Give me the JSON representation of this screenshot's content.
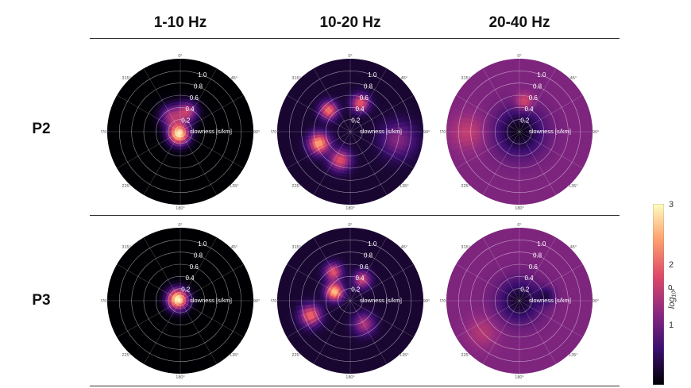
{
  "header": {
    "columns": [
      "1-10 Hz",
      "10-20 Hz",
      "20-40 Hz"
    ],
    "rows": [
      "P2",
      "P3"
    ]
  },
  "chart_data": {
    "type": "heatmap",
    "projection": "polar",
    "radial_label": "slowness [s/km]",
    "radial_ticks": [
      "0.2",
      "0.4",
      "0.6",
      "0.8",
      "1.0"
    ],
    "radial_range": [
      0,
      1.2
    ],
    "azimuth_ticks": [
      "0°",
      "45°",
      "90°",
      "135°",
      "180°",
      "225°",
      "270°",
      "315°"
    ],
    "colorbar": {
      "label": "log₁₀P",
      "range": [
        0,
        3
      ],
      "ticks": [
        "1",
        "2",
        "3"
      ],
      "colors": [
        "#000004",
        "#3b0f70",
        "#8c2981",
        "#de4968",
        "#fe9f6d",
        "#fcfdbf"
      ]
    },
    "panels": [
      {
        "row": "P2",
        "band": "1-10 Hz",
        "background": 0.0,
        "blobs": [
          {
            "az": 210,
            "s": 0.05,
            "sig": 0.12,
            "amp": 2.9
          },
          {
            "az": 20,
            "s": 0.35,
            "sig": 0.12,
            "amp": 1.5
          },
          {
            "az": 330,
            "s": 0.3,
            "sig": 0.13,
            "amp": 1.3
          }
        ]
      },
      {
        "row": "P2",
        "band": "10-20 Hz",
        "background": 0.25,
        "blobs": [
          {
            "az": 315,
            "s": 0.5,
            "sig": 0.1,
            "amp": 1.9
          },
          {
            "az": 250,
            "s": 0.55,
            "sig": 0.12,
            "amp": 2.2
          },
          {
            "az": 20,
            "s": 0.5,
            "sig": 0.1,
            "amp": 1.7
          },
          {
            "az": 200,
            "s": 0.5,
            "sig": 0.12,
            "amp": 1.6
          },
          {
            "az": 100,
            "s": 0.8,
            "sig": 0.2,
            "amp": 0.9
          }
        ]
      },
      {
        "row": "P2",
        "band": "20-40 Hz",
        "background": 1.1,
        "blobs": [
          {
            "az": 0,
            "s": 0.0,
            "sig": 0.28,
            "amp": -1.0
          },
          {
            "az": 10,
            "s": 0.5,
            "sig": 0.1,
            "amp": 0.8
          },
          {
            "az": 270,
            "s": 0.85,
            "sig": 0.2,
            "amp": 0.5
          }
        ]
      },
      {
        "row": "P3",
        "band": "1-10 Hz",
        "background": 0.0,
        "blobs": [
          {
            "az": 300,
            "s": 0.05,
            "sig": 0.12,
            "amp": 3.0
          }
        ]
      },
      {
        "row": "P3",
        "band": "10-20 Hz",
        "background": 0.25,
        "blobs": [
          {
            "az": 300,
            "s": 0.3,
            "sig": 0.1,
            "amp": 2.4
          },
          {
            "az": 250,
            "s": 0.7,
            "sig": 0.12,
            "amp": 1.8
          },
          {
            "az": 330,
            "s": 0.55,
            "sig": 0.1,
            "amp": 1.6
          },
          {
            "az": 30,
            "s": 0.4,
            "sig": 0.1,
            "amp": 1.4
          },
          {
            "az": 150,
            "s": 0.45,
            "sig": 0.12,
            "amp": 1.2
          }
        ]
      },
      {
        "row": "P3",
        "band": "20-40 Hz",
        "background": 1.1,
        "blobs": [
          {
            "az": 0,
            "s": 0.0,
            "sig": 0.25,
            "amp": -0.9
          },
          {
            "az": 80,
            "s": 0.45,
            "sig": 0.1,
            "amp": -0.6
          },
          {
            "az": 230,
            "s": 0.8,
            "sig": 0.18,
            "amp": 0.4
          }
        ]
      }
    ]
  }
}
